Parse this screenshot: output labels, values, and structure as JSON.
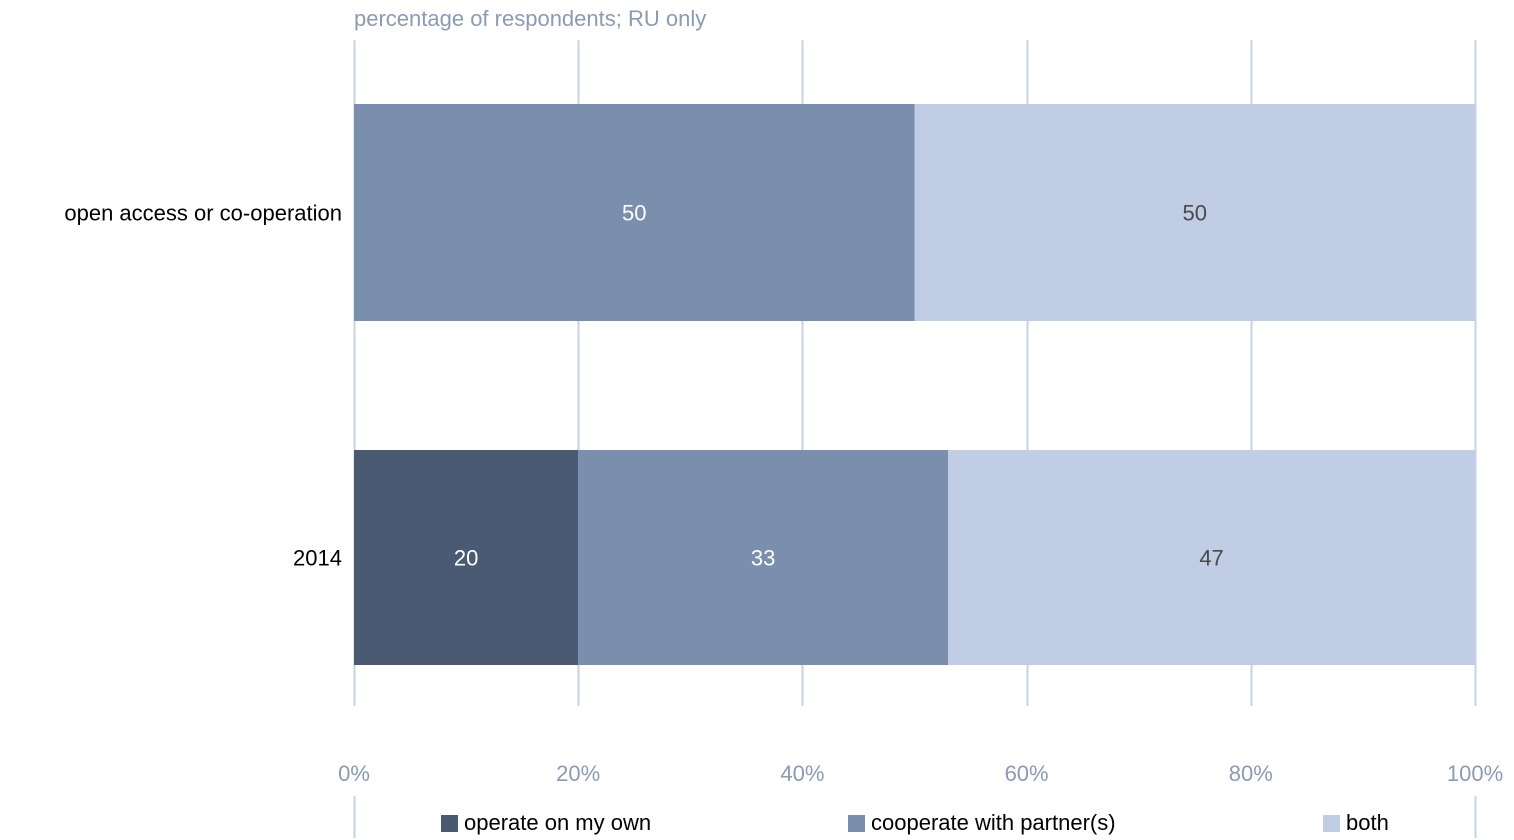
{
  "chart_data": {
    "type": "bar",
    "orientation": "horizontal",
    "stacked": true,
    "subtitle": "percentage of respondents; RU only",
    "categories": [
      "open access or co-operation",
      "2014"
    ],
    "series": [
      {
        "name": "operate on my own",
        "color": "#4a5a73",
        "values": [
          0,
          20
        ]
      },
      {
        "name": "cooperate with partner(s)",
        "color": "#7a8eae",
        "values": [
          50,
          33
        ]
      },
      {
        "name": "both",
        "color": "#c0cde4",
        "values": [
          50,
          47
        ]
      }
    ],
    "xlim": [
      0,
      100
    ],
    "x_ticks": [
      "0%",
      "20%",
      "40%",
      "60%",
      "80%",
      "100%"
    ],
    "grid": true,
    "legend_position": "bottom"
  }
}
